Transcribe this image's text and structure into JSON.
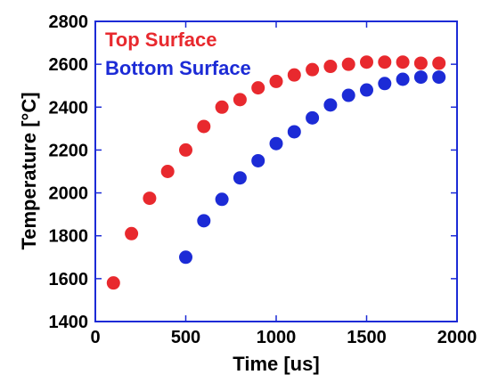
{
  "chart_data": {
    "type": "scatter",
    "xlabel": "Time [us]",
    "ylabel": "Temperature [°C]",
    "xlim": [
      0,
      2000
    ],
    "ylim": [
      1400,
      2800
    ],
    "xticks": [
      0,
      500,
      1000,
      1500,
      2000
    ],
    "yticks": [
      1400,
      1600,
      1800,
      2000,
      2200,
      2400,
      2600,
      2800
    ],
    "grid": false,
    "legend_position": "top-left",
    "series": [
      {
        "name": "Top Surface",
        "color": "#e8292e",
        "x": [
          100,
          200,
          300,
          400,
          500,
          600,
          700,
          800,
          900,
          1000,
          1100,
          1200,
          1300,
          1400,
          1500,
          1600,
          1700,
          1800,
          1900
        ],
        "y": [
          1580,
          1810,
          1975,
          2100,
          2200,
          2310,
          2400,
          2435,
          2490,
          2520,
          2550,
          2575,
          2590,
          2600,
          2610,
          2610,
          2610,
          2605,
          2605
        ]
      },
      {
        "name": "Bottom Surface",
        "color": "#1c2bd6",
        "x": [
          500,
          600,
          700,
          800,
          900,
          1000,
          1100,
          1200,
          1300,
          1400,
          1500,
          1600,
          1700,
          1800,
          1900
        ],
        "y": [
          1700,
          1870,
          1970,
          2070,
          2150,
          2230,
          2285,
          2350,
          2410,
          2455,
          2480,
          2510,
          2530,
          2540,
          2540
        ]
      }
    ]
  }
}
